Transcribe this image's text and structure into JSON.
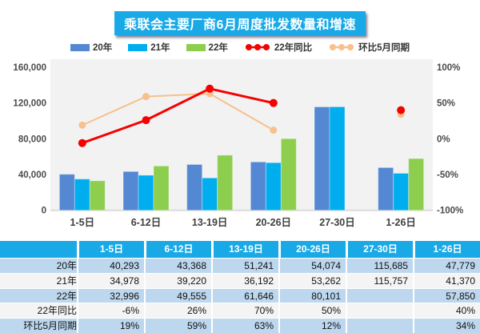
{
  "title": "乘联会主要厂商6月周度批发数量和增速",
  "colors": {
    "accent_cyan": "#18A9E6",
    "bar_blue": "#5488D2",
    "bar_cyan": "#00AEEF",
    "bar_green": "#8DCE4F",
    "line_red": "#F60000",
    "line_peach": "#F7C08C",
    "plot_bg": "#F2F2F2",
    "axis_text": "#4A4A4A",
    "table_row_blue": "#BDD7EE",
    "table_row_gray": "#F4F4F4"
  },
  "legend": [
    {
      "label": "20年",
      "marker": "rect",
      "color": "#5488D2"
    },
    {
      "label": "21年",
      "marker": "rect",
      "color": "#00AEEF"
    },
    {
      "label": "22年",
      "marker": "rect",
      "color": "#8DCE4F"
    },
    {
      "label": "22年同比",
      "marker": "line-dots",
      "color": "#F60000"
    },
    {
      "label": "环比5月同期",
      "marker": "line-dots",
      "color": "#F7C08C"
    }
  ],
  "chart_data": {
    "type": "bar",
    "subtype": "grouped bars with overlay lines on secondary percent axis",
    "categories": [
      "1-5日",
      "6-12日",
      "13-19日",
      "20-26日",
      "27-30日",
      "1-26日"
    ],
    "bar_series": [
      {
        "name": "20年",
        "color": "#5488D2",
        "axis": "left",
        "values": [
          40293,
          43368,
          51241,
          54074,
          115685,
          47779
        ]
      },
      {
        "name": "21年",
        "color": "#00AEEF",
        "axis": "left",
        "values": [
          34978,
          39220,
          36192,
          53262,
          115757,
          41370
        ]
      },
      {
        "name": "22年",
        "color": "#8DCE4F",
        "axis": "left",
        "values": [
          32996,
          49555,
          61646,
          80101,
          null,
          57850
        ]
      }
    ],
    "line_series": [
      {
        "name": "环比5月同期",
        "color": "#F7C08C",
        "axis": "right",
        "values": [
          19,
          59,
          63,
          12,
          null,
          34
        ],
        "dot_r": 4.5,
        "width": 2
      },
      {
        "name": "22年同比",
        "color": "#F60000",
        "axis": "right",
        "values": [
          -6,
          26,
          70,
          50,
          null,
          40
        ],
        "dot_r": 5,
        "width": 3
      }
    ],
    "left_axis": {
      "min": 0,
      "max": 160000,
      "ticks": [
        0,
        40000,
        80000,
        120000,
        160000
      ],
      "tick_labels": [
        "0",
        "40,000",
        "80,000",
        "120,000",
        "160,000"
      ]
    },
    "right_axis": {
      "min": -100,
      "max": 100,
      "ticks": [
        -100,
        -50,
        0,
        50,
        100
      ],
      "tick_labels": [
        "-100%",
        "-50%",
        "0%",
        "50%",
        "100%"
      ]
    },
    "grid": false,
    "legend_position": "top"
  },
  "table": {
    "headers": [
      "",
      "1-5日",
      "6-12日",
      "13-19日",
      "20-26日",
      "27-30日",
      "1-26日"
    ],
    "rows": [
      {
        "label": "20年",
        "values": [
          "40,293",
          "43,368",
          "51,241",
          "54,074",
          "115,685",
          "47,779"
        ]
      },
      {
        "label": "21年",
        "values": [
          "34,978",
          "39,220",
          "36,192",
          "53,262",
          "115,757",
          "41,370"
        ]
      },
      {
        "label": "22年",
        "values": [
          "32,996",
          "49,555",
          "61,646",
          "80,101",
          "",
          "57,850"
        ]
      },
      {
        "label": "22年同比",
        "values": [
          "-6%",
          "26%",
          "70%",
          "50%",
          "",
          "40%"
        ]
      },
      {
        "label": "环比5月同期",
        "values": [
          "19%",
          "59%",
          "63%",
          "12%",
          "",
          "34%"
        ]
      }
    ]
  }
}
